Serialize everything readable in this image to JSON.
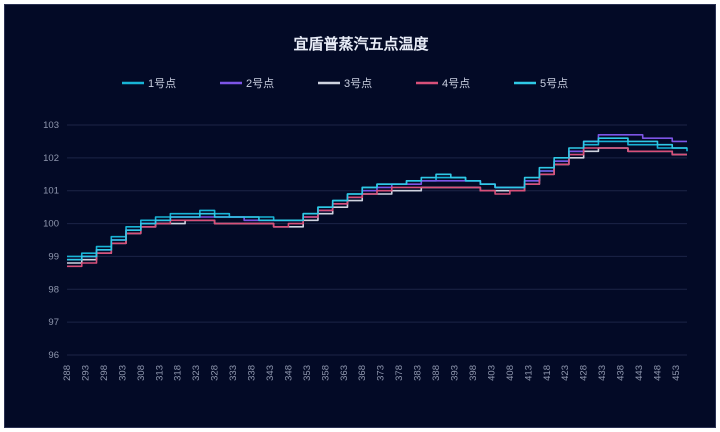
{
  "chart_data": {
    "type": "line",
    "title": "宜盾普蒸汽五点温度",
    "legend_position": "top",
    "grid": true,
    "ylim": [
      96,
      103
    ],
    "yticks": [
      96,
      97,
      98,
      99,
      100,
      101,
      102,
      103
    ],
    "xlim": [
      288,
      456
    ],
    "xticks": [
      288,
      293,
      298,
      303,
      308,
      313,
      318,
      323,
      328,
      333,
      338,
      343,
      348,
      353,
      358,
      363,
      368,
      373,
      378,
      383,
      388,
      393,
      398,
      403,
      408,
      413,
      418,
      423,
      428,
      433,
      438,
      443,
      448,
      453
    ],
    "series": [
      {
        "name": "1号点",
        "color": "#18b4d6",
        "points": [
          [
            288,
            99.0
          ],
          [
            292,
            99.1
          ],
          [
            296,
            99.3
          ],
          [
            300,
            99.6
          ],
          [
            304,
            99.9
          ],
          [
            308,
            100.1
          ],
          [
            312,
            100.2
          ],
          [
            316,
            100.3
          ],
          [
            320,
            100.3
          ],
          [
            324,
            100.4
          ],
          [
            328,
            100.3
          ],
          [
            332,
            100.2
          ],
          [
            336,
            100.2
          ],
          [
            340,
            100.2
          ],
          [
            344,
            100.1
          ],
          [
            348,
            100.1
          ],
          [
            352,
            100.3
          ],
          [
            356,
            100.5
          ],
          [
            360,
            100.7
          ],
          [
            364,
            100.9
          ],
          [
            368,
            101.1
          ],
          [
            372,
            101.2
          ],
          [
            376,
            101.2
          ],
          [
            380,
            101.3
          ],
          [
            384,
            101.3
          ],
          [
            388,
            101.4
          ],
          [
            392,
            101.4
          ],
          [
            396,
            101.3
          ],
          [
            400,
            101.2
          ],
          [
            404,
            101.1
          ],
          [
            408,
            101.1
          ],
          [
            412,
            101.3
          ],
          [
            416,
            101.6
          ],
          [
            420,
            101.9
          ],
          [
            424,
            102.2
          ],
          [
            428,
            102.4
          ],
          [
            432,
            102.5
          ],
          [
            436,
            102.5
          ],
          [
            440,
            102.4
          ],
          [
            444,
            102.4
          ],
          [
            448,
            102.3
          ],
          [
            452,
            102.3
          ],
          [
            456,
            102.2
          ]
        ]
      },
      {
        "name": "2号点",
        "color": "#7d55e6",
        "points": [
          [
            288,
            98.9
          ],
          [
            292,
            99.0
          ],
          [
            296,
            99.2
          ],
          [
            300,
            99.5
          ],
          [
            304,
            99.8
          ],
          [
            308,
            100.0
          ],
          [
            312,
            100.1
          ],
          [
            316,
            100.2
          ],
          [
            320,
            100.2
          ],
          [
            324,
            100.2
          ],
          [
            328,
            100.2
          ],
          [
            332,
            100.2
          ],
          [
            336,
            100.1
          ],
          [
            340,
            100.1
          ],
          [
            344,
            100.1
          ],
          [
            348,
            100.1
          ],
          [
            352,
            100.2
          ],
          [
            356,
            100.4
          ],
          [
            360,
            100.6
          ],
          [
            364,
            100.8
          ],
          [
            368,
            101.0
          ],
          [
            372,
            101.1
          ],
          [
            376,
            101.2
          ],
          [
            380,
            101.2
          ],
          [
            384,
            101.3
          ],
          [
            388,
            101.3
          ],
          [
            392,
            101.3
          ],
          [
            396,
            101.3
          ],
          [
            400,
            101.2
          ],
          [
            404,
            101.1
          ],
          [
            408,
            101.1
          ],
          [
            412,
            101.3
          ],
          [
            416,
            101.6
          ],
          [
            420,
            101.9
          ],
          [
            424,
            102.2
          ],
          [
            428,
            102.5
          ],
          [
            432,
            102.7
          ],
          [
            436,
            102.7
          ],
          [
            440,
            102.7
          ],
          [
            444,
            102.6
          ],
          [
            448,
            102.6
          ],
          [
            452,
            102.5
          ],
          [
            456,
            102.5
          ]
        ]
      },
      {
        "name": "3号点",
        "color": "#cfd3e0",
        "points": [
          [
            288,
            98.8
          ],
          [
            292,
            98.9
          ],
          [
            296,
            99.1
          ],
          [
            300,
            99.4
          ],
          [
            304,
            99.7
          ],
          [
            308,
            99.9
          ],
          [
            312,
            100.0
          ],
          [
            316,
            100.0
          ],
          [
            320,
            100.1
          ],
          [
            324,
            100.1
          ],
          [
            328,
            100.0
          ],
          [
            332,
            100.0
          ],
          [
            336,
            100.0
          ],
          [
            340,
            100.0
          ],
          [
            344,
            99.9
          ],
          [
            348,
            99.9
          ],
          [
            352,
            100.1
          ],
          [
            356,
            100.3
          ],
          [
            360,
            100.5
          ],
          [
            364,
            100.7
          ],
          [
            368,
            100.9
          ],
          [
            372,
            100.9
          ],
          [
            376,
            101.0
          ],
          [
            380,
            101.0
          ],
          [
            384,
            101.1
          ],
          [
            388,
            101.1
          ],
          [
            392,
            101.1
          ],
          [
            396,
            101.1
          ],
          [
            400,
            101.0
          ],
          [
            404,
            101.0
          ],
          [
            408,
            101.0
          ],
          [
            412,
            101.2
          ],
          [
            416,
            101.5
          ],
          [
            420,
            101.8
          ],
          [
            424,
            102.0
          ],
          [
            428,
            102.2
          ],
          [
            432,
            102.3
          ],
          [
            436,
            102.3
          ],
          [
            440,
            102.2
          ],
          [
            444,
            102.2
          ],
          [
            448,
            102.2
          ],
          [
            452,
            102.1
          ],
          [
            456,
            102.1
          ]
        ]
      },
      {
        "name": "4号点",
        "color": "#d8507a",
        "points": [
          [
            288,
            98.7
          ],
          [
            292,
            98.8
          ],
          [
            296,
            99.1
          ],
          [
            300,
            99.4
          ],
          [
            304,
            99.7
          ],
          [
            308,
            99.9
          ],
          [
            312,
            100.0
          ],
          [
            316,
            100.1
          ],
          [
            320,
            100.1
          ],
          [
            324,
            100.1
          ],
          [
            328,
            100.0
          ],
          [
            332,
            100.0
          ],
          [
            336,
            100.0
          ],
          [
            340,
            100.0
          ],
          [
            344,
            99.9
          ],
          [
            348,
            100.0
          ],
          [
            352,
            100.2
          ],
          [
            356,
            100.4
          ],
          [
            360,
            100.6
          ],
          [
            364,
            100.8
          ],
          [
            368,
            100.9
          ],
          [
            372,
            101.0
          ],
          [
            376,
            101.1
          ],
          [
            380,
            101.1
          ],
          [
            384,
            101.1
          ],
          [
            388,
            101.1
          ],
          [
            392,
            101.1
          ],
          [
            396,
            101.1
          ],
          [
            400,
            101.0
          ],
          [
            404,
            100.9
          ],
          [
            408,
            101.0
          ],
          [
            412,
            101.2
          ],
          [
            416,
            101.5
          ],
          [
            420,
            101.8
          ],
          [
            424,
            102.1
          ],
          [
            428,
            102.3
          ],
          [
            432,
            102.3
          ],
          [
            436,
            102.3
          ],
          [
            440,
            102.2
          ],
          [
            444,
            102.2
          ],
          [
            448,
            102.2
          ],
          [
            452,
            102.1
          ],
          [
            456,
            102.1
          ]
        ]
      },
      {
        "name": "5号点",
        "color": "#2fc9e6",
        "points": [
          [
            288,
            98.9
          ],
          [
            292,
            99.0
          ],
          [
            296,
            99.2
          ],
          [
            300,
            99.5
          ],
          [
            304,
            99.8
          ],
          [
            308,
            100.0
          ],
          [
            312,
            100.1
          ],
          [
            316,
            100.2
          ],
          [
            320,
            100.2
          ],
          [
            324,
            100.3
          ],
          [
            328,
            100.2
          ],
          [
            332,
            100.2
          ],
          [
            336,
            100.2
          ],
          [
            340,
            100.1
          ],
          [
            344,
            100.1
          ],
          [
            348,
            100.1
          ],
          [
            352,
            100.3
          ],
          [
            356,
            100.5
          ],
          [
            360,
            100.7
          ],
          [
            364,
            100.9
          ],
          [
            368,
            101.1
          ],
          [
            372,
            101.2
          ],
          [
            376,
            101.2
          ],
          [
            380,
            101.3
          ],
          [
            384,
            101.4
          ],
          [
            388,
            101.5
          ],
          [
            392,
            101.4
          ],
          [
            396,
            101.3
          ],
          [
            400,
            101.2
          ],
          [
            404,
            101.1
          ],
          [
            408,
            101.1
          ],
          [
            412,
            101.4
          ],
          [
            416,
            101.7
          ],
          [
            420,
            102.0
          ],
          [
            424,
            102.3
          ],
          [
            428,
            102.5
          ],
          [
            432,
            102.6
          ],
          [
            436,
            102.6
          ],
          [
            440,
            102.5
          ],
          [
            444,
            102.5
          ],
          [
            448,
            102.4
          ],
          [
            452,
            102.3
          ],
          [
            456,
            102.3
          ]
        ]
      }
    ]
  }
}
